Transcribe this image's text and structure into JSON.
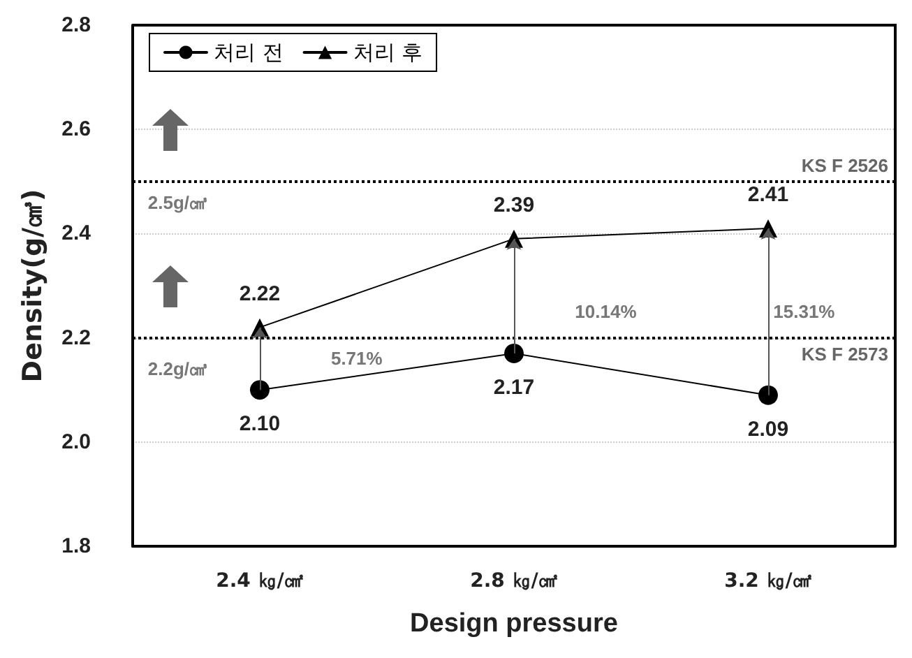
{
  "chart_data": {
    "type": "line",
    "xlabel": "Design pressure",
    "ylabel": "Density(g/㎤)",
    "categories": [
      "2.4 ㎏/㎠",
      "2.8 ㎏/㎠",
      "3.2 ㎏/㎠"
    ],
    "series": [
      {
        "name": "처리 전",
        "color": "#000000",
        "marker": "circle",
        "values": [
          2.1,
          2.17,
          2.09
        ],
        "value_labels": [
          "2.10",
          "2.17",
          "2.09"
        ]
      },
      {
        "name": "처리 후",
        "color": "#000000",
        "marker": "triangle",
        "values": [
          2.22,
          2.39,
          2.41
        ],
        "value_labels": [
          "2.22",
          "2.39",
          "2.41"
        ]
      }
    ],
    "ylim": [
      1.8,
      2.8
    ],
    "yticks": [
      {
        "value": 1.8,
        "label": "1.8"
      },
      {
        "value": 2.0,
        "label": "2.0"
      },
      {
        "value": 2.2,
        "label": "2.2"
      },
      {
        "value": 2.4,
        "label": "2.4"
      },
      {
        "value": 2.6,
        "label": "2.6"
      },
      {
        "value": 2.8,
        "label": "2.8"
      }
    ],
    "ref_lines": [
      {
        "axis": "y",
        "value": 2.5,
        "label": "KS F 2526",
        "color": "#000000",
        "line_style": "dotted"
      },
      {
        "axis": "y",
        "value": 2.2,
        "label": "KS F 2573",
        "color": "#000000",
        "line_style": "dotted"
      }
    ],
    "annotations": [
      "2.5g/㎤",
      "2.2g/㎤",
      "5.71%",
      "10.14%",
      "15.31%"
    ],
    "grid": "y",
    "legend": "top left",
    "line_style": "solid"
  }
}
